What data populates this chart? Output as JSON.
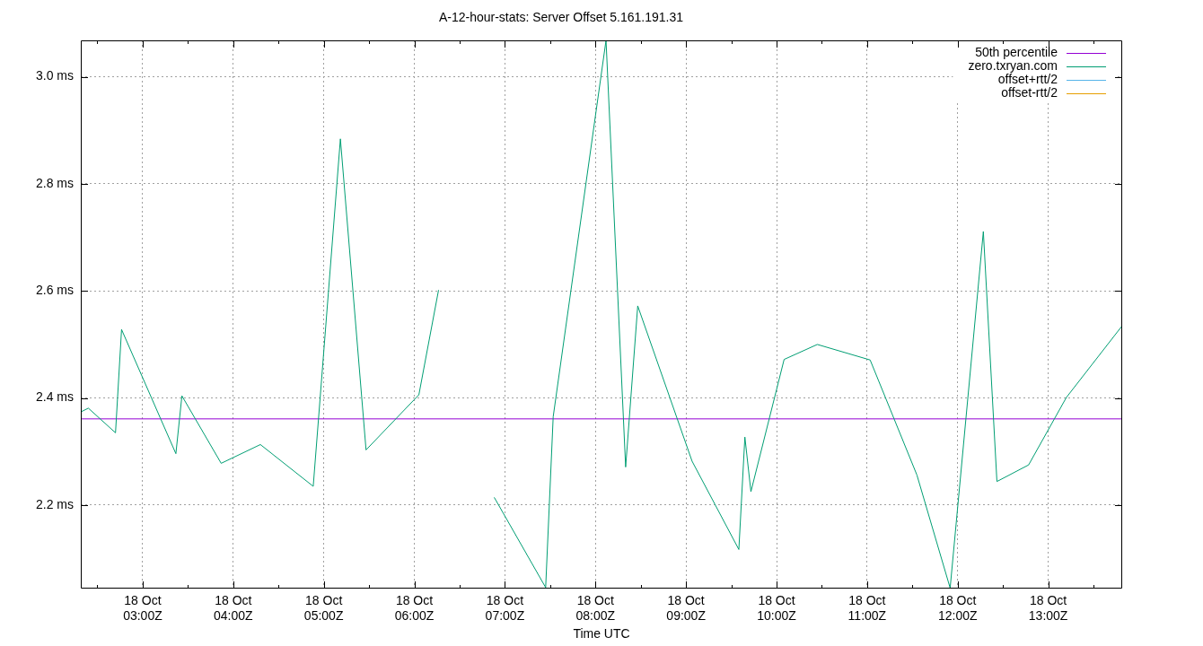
{
  "chart_data": {
    "type": "line",
    "title": "A-12-hour-stats: Server Offset 5.161.191.31",
    "xlabel": "Time UTC",
    "xlim": [
      "--10-18T02:19",
      "--10-18T13:49"
    ],
    "ylim": [
      2.044,
      3.068
    ],
    "xticks": [
      {
        "value": "--10-18T02:30",
        "label": null
      },
      {
        "value": "--10-18T03:00",
        "label": "18 Oct\n03:00Z"
      },
      {
        "value": "--10-18T03:30",
        "label": null
      },
      {
        "value": "--10-18T04:00",
        "label": "18 Oct\n04:00Z"
      },
      {
        "value": "--10-18T04:30",
        "label": null
      },
      {
        "value": "--10-18T05:00",
        "label": "18 Oct\n05:00Z"
      },
      {
        "value": "--10-18T05:30",
        "label": null
      },
      {
        "value": "--10-18T06:00",
        "label": "18 Oct\n06:00Z"
      },
      {
        "value": "--10-18T06:30",
        "label": null
      },
      {
        "value": "--10-18T07:00",
        "label": "18 Oct\n07:00Z"
      },
      {
        "value": "--10-18T07:30",
        "label": null
      },
      {
        "value": "--10-18T08:00",
        "label": "18 Oct\n08:00Z"
      },
      {
        "value": "--10-18T08:30",
        "label": null
      },
      {
        "value": "--10-18T09:00",
        "label": "18 Oct\n09:00Z"
      },
      {
        "value": "--10-18T09:30",
        "label": null
      },
      {
        "value": "--10-18T10:00",
        "label": "18 Oct\n10:00Z"
      },
      {
        "value": "--10-18T10:30",
        "label": null
      },
      {
        "value": "--10-18T11:00",
        "label": "18 Oct\n11:00Z"
      },
      {
        "value": "--10-18T11:30",
        "label": null
      },
      {
        "value": "--10-18T12:00",
        "label": "18 Oct\n12:00Z"
      },
      {
        "value": "--10-18T12:30",
        "label": null
      },
      {
        "value": "--10-18T13:00",
        "label": "18 Oct\n13:00Z"
      },
      {
        "value": "--10-18T13:30",
        "label": null
      }
    ],
    "yticks": [
      {
        "value": 2.2,
        "label": "2.2 ms"
      },
      {
        "value": 2.4,
        "label": "2.4 ms"
      },
      {
        "value": 2.6,
        "label": "2.6 ms"
      },
      {
        "value": 2.8,
        "label": "2.8 ms"
      },
      {
        "value": 3.0,
        "label": "3.0 ms"
      }
    ],
    "grid": true,
    "legend": "top right",
    "series": [
      {
        "name": "50th percentile",
        "color": "#9400d3",
        "x": [
          "--10-18T02:19",
          "--10-18T13:49"
        ],
        "values": [
          2.361,
          2.361
        ]
      },
      {
        "name": "zero.txryan.com",
        "color": "#009e73",
        "x": [
          "--10-18T02:19",
          "--10-18T02:24",
          "--10-18T02:42",
          "--10-18T02:46",
          "--10-18T03:22",
          "--10-18T03:26",
          "--10-18T03:52",
          "--10-18T04:18",
          "--10-18T04:53",
          "--10-18T05:11",
          "--10-18T05:28",
          "--10-18T06:03",
          "--10-18T06:16",
          "--10-18T06:35",
          "--10-18T06:53",
          "--10-18T07:27",
          "--10-18T07:32",
          "--10-18T08:07",
          "--10-18T08:20",
          "--10-18T08:28",
          "--10-18T09:04",
          "--10-18T09:35",
          "--10-18T09:39",
          "--10-18T09:43",
          "--10-18T10:05",
          "--10-18T10:27",
          "--10-18T11:02",
          "--10-18T11:33",
          "--10-18T11:55",
          "--10-18T12:17",
          "--10-18T12:26",
          "--10-18T12:47",
          "--10-18T13:12",
          "--10-18T13:49"
        ],
        "values": [
          2.374,
          2.381,
          2.335,
          2.528,
          2.296,
          2.404,
          2.278,
          2.313,
          2.235,
          2.884,
          2.303,
          2.406,
          2.601,
          null,
          2.214,
          2.046,
          2.365,
          3.068,
          2.271,
          2.572,
          2.282,
          2.117,
          2.327,
          2.225,
          2.472,
          2.5,
          2.471,
          2.256,
          2.045,
          2.711,
          2.244,
          2.275,
          2.401,
          2.535
        ]
      },
      {
        "name": "offset+rtt/2",
        "color": "#56b4e9"
      },
      {
        "name": "offset-rtt/2",
        "color": "#e69f00"
      }
    ]
  }
}
